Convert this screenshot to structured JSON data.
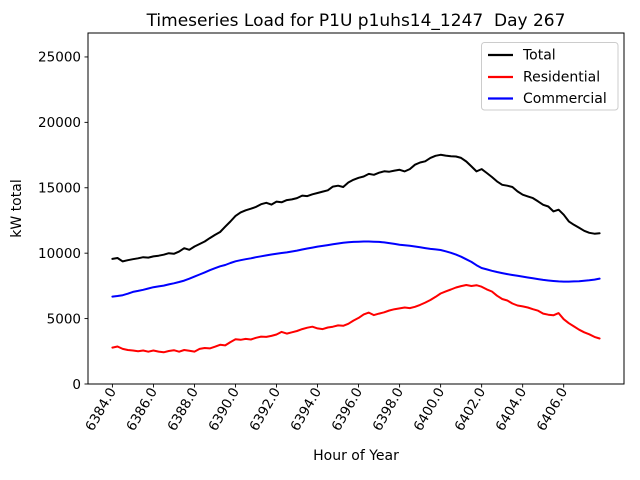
{
  "chart_data": {
    "type": "line",
    "title": "Timeseries Load for P1U p1uhs14_1247  Day 267",
    "xlabel": "Hour of Year",
    "ylabel": "kW total",
    "xlim": [
      6382.81,
      6408.94
    ],
    "ylim": [
      0,
      26830
    ],
    "grid": false,
    "legend": {
      "position": "upper right",
      "entries": [
        "Total",
        "Residential",
        "Commercial"
      ]
    },
    "xticks": [
      6384,
      6386,
      6388,
      6390,
      6392,
      6394,
      6396,
      6398,
      6400,
      6402,
      6404,
      6406
    ],
    "xtick_labels": [
      "6384.0",
      "6386.0",
      "6388.0",
      "6390.0",
      "6392.0",
      "6394.0",
      "6396.0",
      "6398.0",
      "6400.0",
      "6402.0",
      "6404.0",
      "6406.0"
    ],
    "yticks": [
      0,
      5000,
      10000,
      15000,
      20000,
      25000
    ],
    "ytick_labels": [
      "0",
      "5000",
      "10000",
      "15000",
      "20000",
      "25000"
    ],
    "x_step_hours": 0.25,
    "x": [
      6384.0,
      6384.25,
      6384.5,
      6384.75,
      6385.0,
      6385.25,
      6385.5,
      6385.75,
      6386.0,
      6386.25,
      6386.5,
      6386.75,
      6387.0,
      6387.25,
      6387.5,
      6387.75,
      6388.0,
      6388.25,
      6388.5,
      6388.75,
      6389.0,
      6389.25,
      6389.5,
      6389.75,
      6390.0,
      6390.25,
      6390.5,
      6390.75,
      6391.0,
      6391.25,
      6391.5,
      6391.75,
      6392.0,
      6392.25,
      6392.5,
      6392.75,
      6393.0,
      6393.25,
      6393.5,
      6393.75,
      6394.0,
      6394.25,
      6394.5,
      6394.75,
      6395.0,
      6395.25,
      6395.5,
      6395.75,
      6396.0,
      6396.25,
      6396.5,
      6396.75,
      6397.0,
      6397.25,
      6397.5,
      6397.75,
      6398.0,
      6398.25,
      6398.5,
      6398.75,
      6399.0,
      6399.25,
      6399.5,
      6399.75,
      6400.0,
      6400.25,
      6400.5,
      6400.75,
      6401.0,
      6401.25,
      6401.5,
      6401.75,
      6402.0,
      6402.25,
      6402.5,
      6402.75,
      6403.0,
      6403.25,
      6403.5,
      6403.75,
      6404.0,
      6404.25,
      6404.5,
      6404.75,
      6405.0,
      6405.25,
      6405.5,
      6405.75,
      6406.0,
      6406.25,
      6406.5,
      6406.75,
      6407.0,
      6407.25,
      6407.5,
      6407.75
    ],
    "series": [
      {
        "name": "Total",
        "color": "#000000",
        "values": [
          9560,
          9630,
          9370,
          9460,
          9540,
          9610,
          9690,
          9660,
          9750,
          9810,
          9880,
          10000,
          9950,
          10120,
          10380,
          10260,
          10510,
          10700,
          10890,
          11150,
          11400,
          11620,
          12020,
          12420,
          12850,
          13120,
          13280,
          13400,
          13540,
          13740,
          13850,
          13710,
          13940,
          13890,
          14060,
          14110,
          14210,
          14400,
          14360,
          14500,
          14600,
          14710,
          14810,
          15090,
          15160,
          15060,
          15400,
          15610,
          15760,
          15860,
          16060,
          15990,
          16150,
          16260,
          16230,
          16310,
          16370,
          16250,
          16430,
          16760,
          16930,
          17020,
          17280,
          17440,
          17520,
          17460,
          17410,
          17390,
          17280,
          17010,
          16630,
          16250,
          16430,
          16130,
          15820,
          15490,
          15230,
          15160,
          15060,
          14720,
          14470,
          14340,
          14210,
          13960,
          13700,
          13570,
          13190,
          13320,
          12940,
          12430,
          12170,
          11940,
          11710,
          11560,
          11490,
          11520
        ]
      },
      {
        "name": "Residential",
        "color": "#ff0000",
        "values": [
          2780,
          2870,
          2680,
          2600,
          2560,
          2500,
          2560,
          2470,
          2560,
          2480,
          2420,
          2520,
          2580,
          2470,
          2600,
          2540,
          2480,
          2680,
          2750,
          2720,
          2850,
          3000,
          2950,
          3200,
          3420,
          3380,
          3450,
          3400,
          3530,
          3620,
          3600,
          3680,
          3780,
          3980,
          3850,
          3950,
          4050,
          4200,
          4300,
          4380,
          4250,
          4200,
          4320,
          4380,
          4480,
          4450,
          4600,
          4850,
          5050,
          5320,
          5460,
          5270,
          5380,
          5480,
          5620,
          5720,
          5780,
          5850,
          5800,
          5900,
          6050,
          6220,
          6420,
          6660,
          6920,
          7080,
          7220,
          7380,
          7480,
          7570,
          7490,
          7550,
          7440,
          7230,
          7070,
          6750,
          6500,
          6380,
          6150,
          6000,
          5930,
          5850,
          5720,
          5600,
          5380,
          5300,
          5250,
          5420,
          4950,
          4650,
          4400,
          4150,
          3950,
          3800,
          3600,
          3480
        ]
      },
      {
        "name": "Commercial",
        "color": "#0000ff",
        "values": [
          6680,
          6730,
          6790,
          6900,
          7040,
          7120,
          7200,
          7300,
          7400,
          7460,
          7520,
          7610,
          7700,
          7800,
          7900,
          8050,
          8210,
          8370,
          8530,
          8700,
          8850,
          9000,
          9100,
          9250,
          9380,
          9460,
          9540,
          9610,
          9690,
          9760,
          9830,
          9900,
          9960,
          10010,
          10060,
          10130,
          10200,
          10280,
          10360,
          10430,
          10500,
          10560,
          10620,
          10680,
          10740,
          10790,
          10830,
          10860,
          10880,
          10890,
          10890,
          10880,
          10860,
          10820,
          10770,
          10710,
          10650,
          10610,
          10570,
          10510,
          10450,
          10390,
          10330,
          10290,
          10240,
          10140,
          10030,
          9890,
          9730,
          9530,
          9330,
          9080,
          8870,
          8760,
          8650,
          8560,
          8480,
          8400,
          8330,
          8270,
          8210,
          8140,
          8080,
          8020,
          7960,
          7910,
          7870,
          7840,
          7830,
          7830,
          7840,
          7860,
          7890,
          7930,
          7980,
          8060
        ]
      }
    ]
  }
}
